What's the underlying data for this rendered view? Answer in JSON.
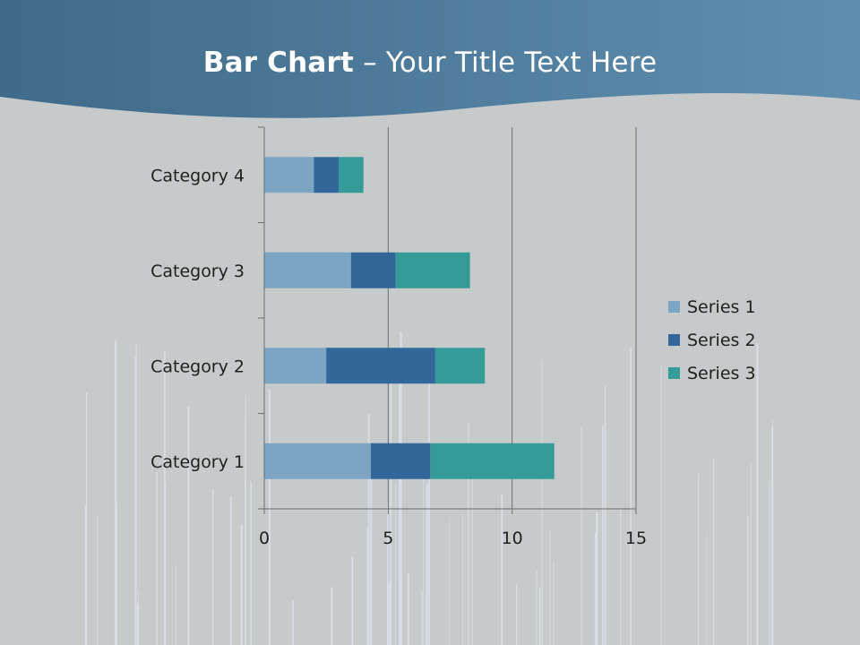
{
  "slide": {
    "title_bold": "Bar Chart",
    "title_rest": " – Your Title Text Here"
  },
  "colors": {
    "header": "#4d7c9c",
    "background": "#c6cacb",
    "series": [
      "#7ba5c3",
      "#336799",
      "#349b98"
    ],
    "grid": "#6e6e6e"
  },
  "chart_data": {
    "type": "bar",
    "orientation": "horizontal",
    "stacked": true,
    "categories": [
      "Category 1",
      "Category 2",
      "Category 3",
      "Category 4"
    ],
    "series": [
      {
        "name": "Series 1",
        "values": [
          4.3,
          2.5,
          3.5,
          2.0
        ]
      },
      {
        "name": "Series 2",
        "values": [
          2.4,
          4.4,
          1.8,
          1.0
        ]
      },
      {
        "name": "Series 3",
        "values": [
          5.0,
          2.0,
          3.0,
          1.0
        ]
      }
    ],
    "xlim": [
      0,
      15
    ],
    "xticks": [
      0,
      5,
      10,
      15
    ],
    "grid": "vertical major gridlines",
    "legend": "right"
  }
}
